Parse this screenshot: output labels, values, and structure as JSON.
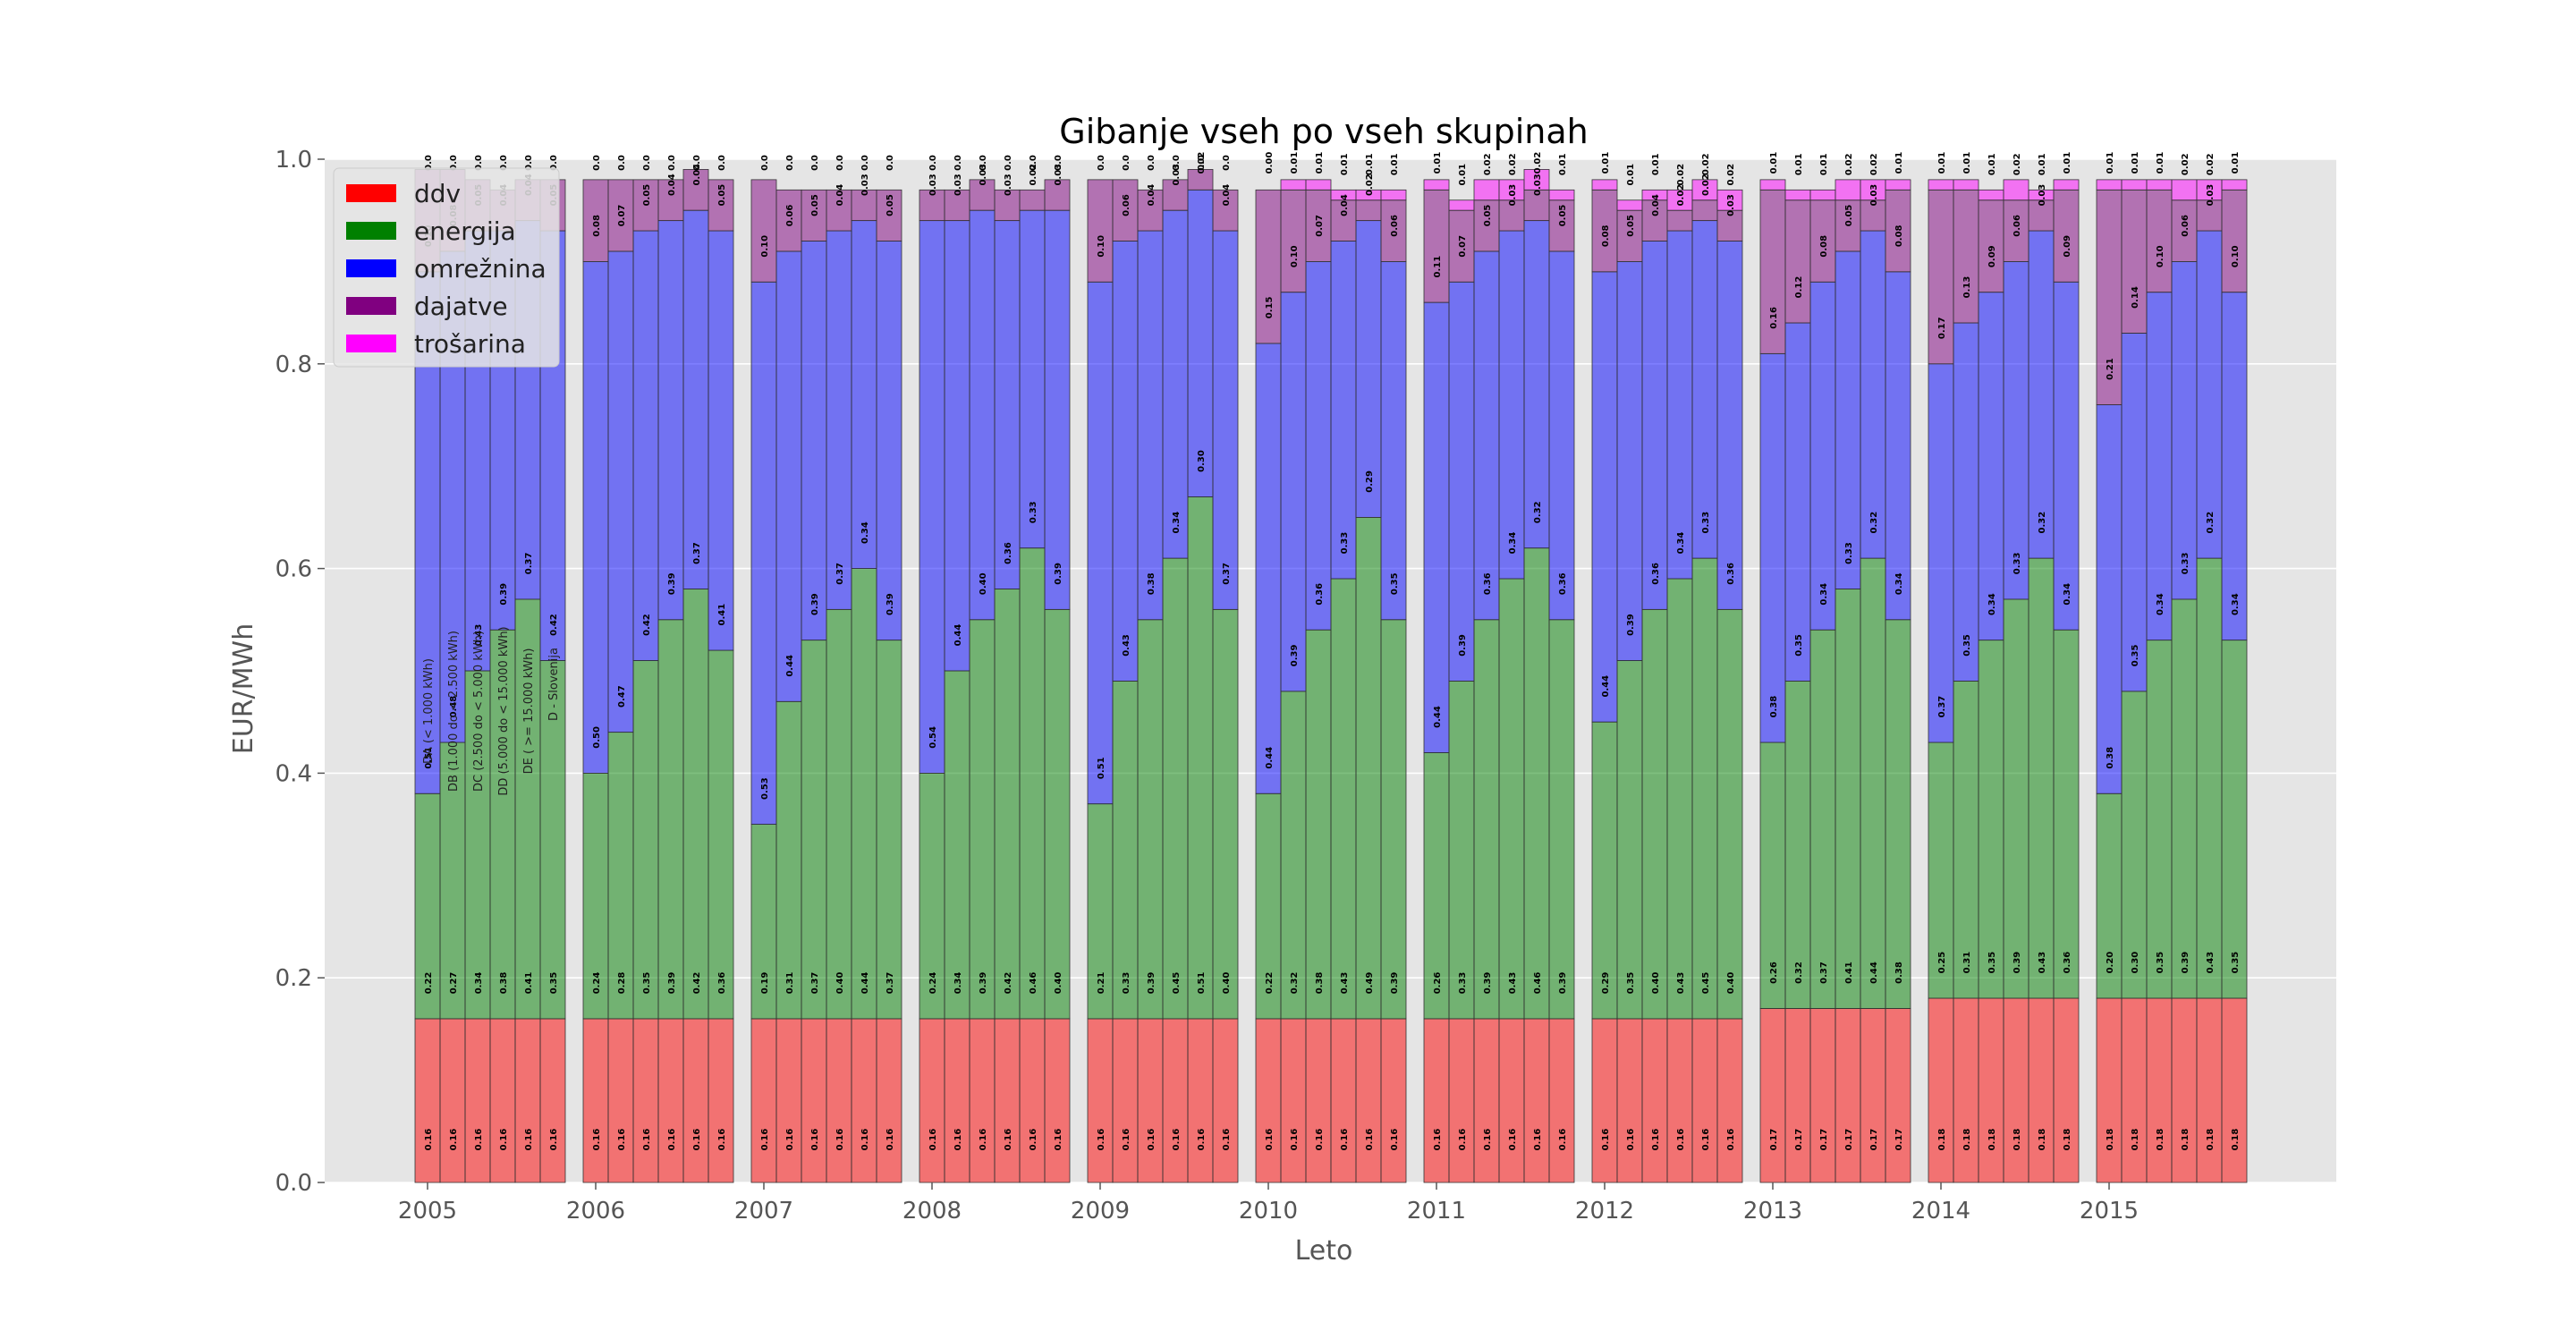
{
  "colors": {
    "ddv": "#ff0000",
    "energija": "#008000",
    "omreznina": "#0000ff",
    "dajatve": "#800080",
    "trosarina": "#ff00ff",
    "plot_background": "#e5e5e5",
    "grid": "#ffffff"
  },
  "chart_data": {
    "type": "bar",
    "stacked": true,
    "title": "Gibanje vseh po vseh skupinah",
    "xlabel": "Leto",
    "ylabel": "EUR/MWh",
    "ylim": [
      0,
      1.0
    ],
    "yticks": [
      "0.0",
      "0.2",
      "0.4",
      "0.6",
      "0.8",
      "1.0"
    ],
    "grid": true,
    "legend_position": "top-left",
    "categories": [
      "2005",
      "2006",
      "2007",
      "2008",
      "2009",
      "2010",
      "2011",
      "2012",
      "2013",
      "2014",
      "2015"
    ],
    "groups_per_year": 6,
    "group_labels": [
      "DA (< 1.000 kWh)",
      "DB (1.000 do < 2.500 kWh)",
      "DC (2.500 do < 5.000 kWh)",
      "DD (5.000 do < 15.000 kWh)",
      "DE ( >= 15.000 kWh)",
      "D - Slovenija"
    ],
    "series": [
      {
        "name": "ddv",
        "key": "ddv",
        "values": [
          [
            0.16,
            0.16,
            0.16,
            0.16,
            0.16,
            0.16
          ],
          [
            0.16,
            0.16,
            0.16,
            0.16,
            0.16,
            0.16
          ],
          [
            0.16,
            0.16,
            0.16,
            0.16,
            0.16,
            0.16
          ],
          [
            0.16,
            0.16,
            0.16,
            0.16,
            0.16,
            0.16
          ],
          [
            0.16,
            0.16,
            0.16,
            0.16,
            0.16,
            0.16
          ],
          [
            0.16,
            0.16,
            0.16,
            0.16,
            0.16,
            0.16
          ],
          [
            0.16,
            0.16,
            0.16,
            0.16,
            0.16,
            0.16
          ],
          [
            0.16,
            0.16,
            0.16,
            0.16,
            0.16,
            0.16
          ],
          [
            0.17,
            0.17,
            0.17,
            0.17,
            0.17,
            0.17
          ],
          [
            0.18,
            0.18,
            0.18,
            0.18,
            0.18,
            0.18
          ],
          [
            0.18,
            0.18,
            0.18,
            0.18,
            0.18,
            0.18
          ]
        ]
      },
      {
        "name": "energija",
        "key": "energija",
        "values": [
          [
            0.22,
            0.27,
            0.34,
            0.38,
            0.41,
            0.35
          ],
          [
            0.24,
            0.28,
            0.35,
            0.39,
            0.42,
            0.36
          ],
          [
            0.19,
            0.31,
            0.37,
            0.4,
            0.44,
            0.37
          ],
          [
            0.24,
            0.34,
            0.39,
            0.42,
            0.46,
            0.4
          ],
          [
            0.21,
            0.33,
            0.39,
            0.45,
            0.51,
            0.4
          ],
          [
            0.22,
            0.32,
            0.38,
            0.43,
            0.49,
            0.39
          ],
          [
            0.26,
            0.33,
            0.39,
            0.43,
            0.46,
            0.39
          ],
          [
            0.29,
            0.35,
            0.4,
            0.43,
            0.45,
            0.4
          ],
          [
            0.26,
            0.32,
            0.37,
            0.41,
            0.44,
            0.38
          ],
          [
            0.25,
            0.31,
            0.35,
            0.39,
            0.43,
            0.36
          ],
          [
            0.2,
            0.3,
            0.35,
            0.39,
            0.43,
            0.35
          ]
        ]
      },
      {
        "name": "omrežnina",
        "key": "omreznina",
        "values": [
          [
            0.51,
            0.48,
            0.43,
            0.39,
            0.37,
            0.42
          ],
          [
            0.5,
            0.47,
            0.42,
            0.39,
            0.37,
            0.41
          ],
          [
            0.53,
            0.44,
            0.39,
            0.37,
            0.34,
            0.39
          ],
          [
            0.54,
            0.44,
            0.4,
            0.36,
            0.33,
            0.39
          ],
          [
            0.51,
            0.43,
            0.38,
            0.34,
            0.3,
            0.37
          ],
          [
            0.44,
            0.39,
            0.36,
            0.33,
            0.29,
            0.35
          ],
          [
            0.44,
            0.39,
            0.36,
            0.34,
            0.32,
            0.36
          ],
          [
            0.44,
            0.39,
            0.36,
            0.34,
            0.33,
            0.36
          ],
          [
            0.38,
            0.35,
            0.34,
            0.33,
            0.32,
            0.34
          ],
          [
            0.37,
            0.35,
            0.34,
            0.33,
            0.32,
            0.34
          ],
          [
            0.38,
            0.35,
            0.34,
            0.33,
            0.32,
            0.34
          ]
        ]
      },
      {
        "name": "dajatve",
        "key": "dajatve",
        "values": [
          [
            0.1,
            0.08,
            0.05,
            0.04,
            0.04,
            0.05
          ],
          [
            0.08,
            0.07,
            0.05,
            0.04,
            0.04,
            0.05
          ],
          [
            0.1,
            0.06,
            0.05,
            0.04,
            0.03,
            0.05
          ],
          [
            0.03,
            0.03,
            0.03,
            0.03,
            0.02,
            0.03
          ],
          [
            0.1,
            0.06,
            0.04,
            0.03,
            0.02,
            0.04
          ],
          [
            0.15,
            0.1,
            0.07,
            0.04,
            0.02,
            0.06
          ],
          [
            0.11,
            0.07,
            0.05,
            0.03,
            0.03,
            0.05
          ],
          [
            0.08,
            0.05,
            0.04,
            0.02,
            0.02,
            0.03
          ],
          [
            0.16,
            0.12,
            0.08,
            0.05,
            0.03,
            0.08
          ],
          [
            0.17,
            0.13,
            0.09,
            0.06,
            0.03,
            0.09
          ],
          [
            0.21,
            0.14,
            0.1,
            0.06,
            0.03,
            0.1
          ]
        ]
      },
      {
        "name": "trošarina",
        "key": "trosarina",
        "values": [
          [
            0.0,
            0.0,
            0.0,
            0.0,
            0.0,
            0.0
          ],
          [
            0.0,
            0.0,
            0.0,
            0.0,
            0.0,
            0.0
          ],
          [
            0.0,
            0.0,
            0.0,
            0.0,
            0.0,
            0.0
          ],
          [
            0.0,
            0.0,
            0.0,
            0.0,
            0.0,
            0.0
          ],
          [
            0.0,
            0.0,
            0.0,
            0.0,
            0.0,
            0.0
          ],
          [
            0.0,
            0.01,
            0.01,
            0.01,
            0.01,
            0.01
          ],
          [
            0.01,
            0.01,
            0.02,
            0.02,
            0.02,
            0.01
          ],
          [
            0.01,
            0.01,
            0.01,
            0.02,
            0.02,
            0.02
          ],
          [
            0.01,
            0.01,
            0.01,
            0.02,
            0.02,
            0.01
          ],
          [
            0.01,
            0.01,
            0.01,
            0.02,
            0.01,
            0.01
          ],
          [
            0.01,
            0.01,
            0.01,
            0.02,
            0.02,
            0.01
          ]
        ]
      }
    ]
  }
}
